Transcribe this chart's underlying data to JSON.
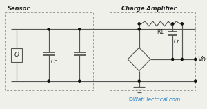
{
  "bg_color": "#f0f0eb",
  "line_color": "#555555",
  "dot_color": "#111111",
  "sensor_label": "Sensor",
  "amp_label": "Charge Amplifier",
  "Q_label": "Q",
  "Cr_label1": "Cr",
  "Cr_label2": "Cr",
  "R1_label": "R1",
  "Vo_label": "Vo",
  "watermark": "©WatElectrical.com",
  "watermark_color": "#3388cc",
  "fig_width": 3.0,
  "fig_height": 1.58,
  "dpi": 100
}
